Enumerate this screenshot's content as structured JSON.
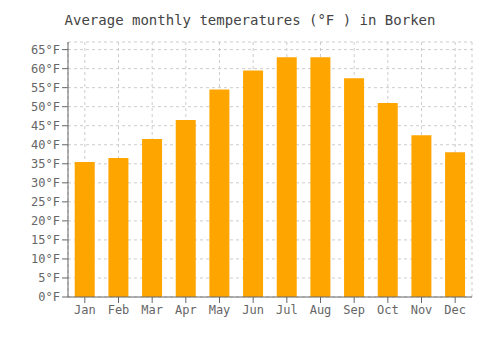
{
  "chart_data": {
    "type": "bar",
    "title": "Average monthly temperatures (°F ) in Borken",
    "categories": [
      "Jan",
      "Feb",
      "Mar",
      "Apr",
      "May",
      "Jun",
      "Jul",
      "Aug",
      "Sep",
      "Oct",
      "Nov",
      "Dec"
    ],
    "values": [
      35.5,
      36.5,
      41.5,
      46.5,
      54.5,
      59.5,
      63.0,
      63.0,
      57.5,
      51.0,
      42.5,
      38.0
    ],
    "color": "#FFA500",
    "ylim": [
      0,
      67
    ],
    "yticks": [
      {
        "value": 0,
        "label": "0°F"
      },
      {
        "value": 5,
        "label": "5°F"
      },
      {
        "value": 10,
        "label": "10°F"
      },
      {
        "value": 15,
        "label": "15°F"
      },
      {
        "value": 20,
        "label": "20°F"
      },
      {
        "value": 25,
        "label": "25°F"
      },
      {
        "value": 30,
        "label": "30°F"
      },
      {
        "value": 35,
        "label": "35°F"
      },
      {
        "value": 40,
        "label": "40°F"
      },
      {
        "value": 45,
        "label": "45°F"
      },
      {
        "value": 50,
        "label": "50°F"
      },
      {
        "value": 55,
        "label": "55°F"
      },
      {
        "value": 60,
        "label": "60°F"
      },
      {
        "value": 65,
        "label": "65°F"
      }
    ],
    "grid": true
  }
}
